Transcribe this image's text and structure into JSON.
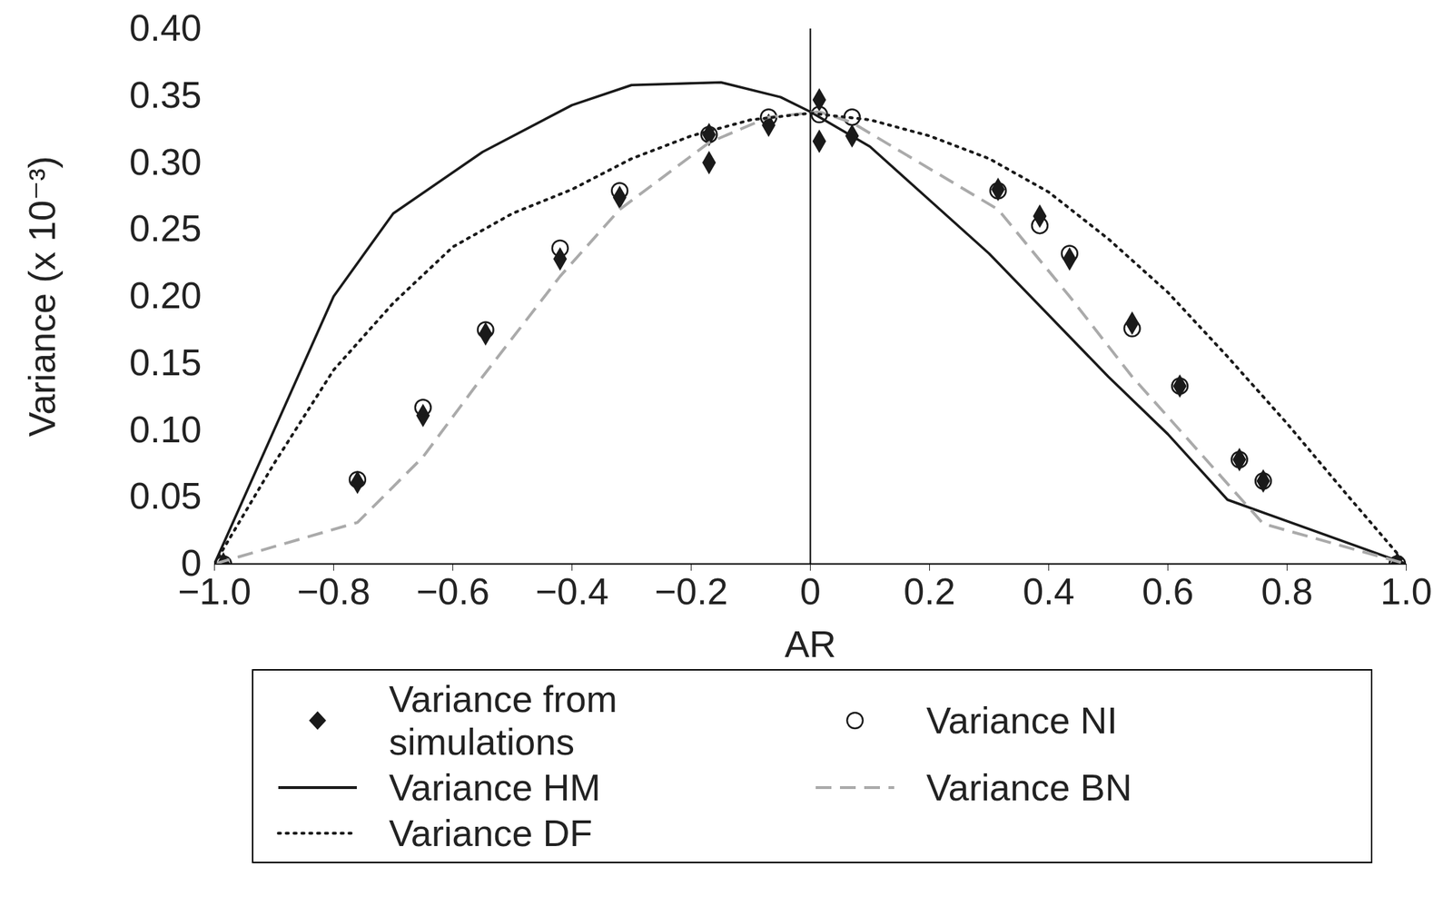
{
  "chart_data": {
    "type": "line",
    "x_label": "AR",
    "y_label": "Variance (x 10⁻³)",
    "xlim": [
      -1,
      1
    ],
    "xticks": [
      {
        "value": -1,
        "label": "−1.0"
      },
      {
        "value": -0.8,
        "label": "−0.8"
      },
      {
        "value": -0.6,
        "label": "−0.6"
      },
      {
        "value": -0.4,
        "label": "−0.4"
      },
      {
        "value": -0.2,
        "label": "−0.2"
      },
      0,
      0.2,
      0.4,
      0.6,
      0.8,
      {
        "value": 1,
        "label": "1.0"
      }
    ],
    "ylim": [
      0,
      0.4
    ],
    "yticks": [
      0,
      0.05,
      {
        "value": 0.1,
        "label": "0.10"
      },
      0.15,
      {
        "value": 0.2,
        "label": "0.20"
      },
      0.25,
      {
        "value": 0.3,
        "label": "0.30"
      },
      0.35,
      {
        "value": 0.4,
        "label": "0.40"
      }
    ],
    "grid": false,
    "legend": "bottom",
    "series": [
      {
        "name": "Variance from simulations",
        "type": "scatter",
        "marker": "diamond",
        "color": "#1a1a1a",
        "x": [
          -0.985,
          -0.76,
          -0.65,
          -0.545,
          -0.42,
          -0.32,
          -0.17,
          -0.17,
          -0.07,
          0.015,
          0.015,
          0.07,
          0.315,
          0.385,
          0.435,
          0.54,
          0.62,
          0.72,
          0.76,
          0.985
        ],
        "values": [
          0,
          0.061,
          0.111,
          0.172,
          0.228,
          0.274,
          0.3,
          0.321,
          0.328,
          0.347,
          0.316,
          0.32,
          0.28,
          0.26,
          0.228,
          0.18,
          0.133,
          0.078,
          0.062,
          0
        ]
      },
      {
        "name": "Variance NI",
        "type": "scatter",
        "marker": "open_circle",
        "color": "#1a1a1a",
        "x": [
          -0.985,
          -0.76,
          -0.65,
          -0.545,
          -0.42,
          -0.32,
          -0.17,
          -0.07,
          0.015,
          0.07,
          0.315,
          0.385,
          0.435,
          0.54,
          0.62,
          0.72,
          0.76,
          0.985
        ],
        "values": [
          0,
          0.063,
          0.117,
          0.175,
          0.236,
          0.279,
          0.321,
          0.334,
          0.336,
          0.334,
          0.279,
          0.253,
          0.232,
          0.176,
          0.133,
          0.078,
          0.062,
          0
        ]
      },
      {
        "name": "Variance HM",
        "type": "line",
        "line_style": "solid",
        "color": "#1a1a1a",
        "x": [
          -1,
          -0.8,
          -0.7,
          -0.55,
          -0.4,
          -0.3,
          -0.15,
          -0.05,
          0,
          0.1,
          0.2,
          0.3,
          0.4,
          0.5,
          0.6,
          0.7,
          1
        ],
        "values": [
          0,
          0.2,
          0.262,
          0.308,
          0.343,
          0.358,
          0.36,
          0.349,
          0.338,
          0.312,
          0.272,
          0.232,
          0.186,
          0.14,
          0.097,
          0.048,
          0
        ]
      },
      {
        "name": "Variance BN",
        "type": "line",
        "line_style": "dashed",
        "color": "#aaaaaa",
        "x": [
          -1,
          -0.76,
          -0.65,
          -0.55,
          -0.42,
          -0.32,
          -0.17,
          -0.07,
          0.015,
          0.07,
          0.315,
          0.435,
          0.54,
          0.62,
          0.76,
          1
        ],
        "values": [
          0,
          0.031,
          0.08,
          0.14,
          0.215,
          0.265,
          0.315,
          0.334,
          0.338,
          0.33,
          0.265,
          0.2,
          0.14,
          0.1,
          0.03,
          0
        ]
      },
      {
        "name": "Variance DF",
        "type": "line",
        "line_style": "dotted",
        "color": "#1a1a1a",
        "x": [
          -1,
          -0.9,
          -0.8,
          -0.7,
          -0.6,
          -0.5,
          -0.4,
          -0.3,
          -0.2,
          -0.1,
          0,
          0.1,
          0.2,
          0.3,
          0.4,
          0.5,
          0.6,
          0.7,
          0.8,
          0.9,
          1
        ],
        "values": [
          0,
          0.075,
          0.145,
          0.195,
          0.237,
          0.262,
          0.28,
          0.303,
          0.32,
          0.332,
          0.337,
          0.332,
          0.32,
          0.303,
          0.278,
          0.243,
          0.203,
          0.155,
          0.105,
          0.052,
          0
        ]
      }
    ]
  }
}
